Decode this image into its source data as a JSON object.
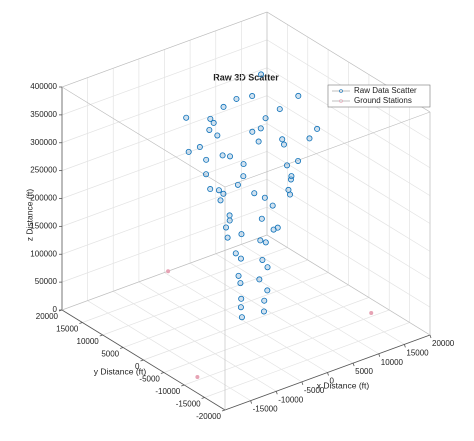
{
  "chart_data": {
    "type": "scatter3d",
    "title": "Raw 3D Scatter",
    "xlabel": "x Distance (ft)",
    "ylabel": "y Distance (ft)",
    "zlabel": "z Distance (ft)",
    "xlim": [
      -20000,
      20000
    ],
    "ylim": [
      -20000,
      20000
    ],
    "zlim": [
      0,
      400000
    ],
    "xticks": [
      -15000,
      -10000,
      -5000,
      0,
      5000,
      10000,
      15000,
      20000
    ],
    "yticks": [
      -20000,
      -15000,
      -10000,
      -5000,
      0,
      5000,
      10000,
      15000,
      20000
    ],
    "zticks": [
      0,
      50000,
      100000,
      150000,
      200000,
      250000,
      300000,
      350000,
      400000
    ],
    "grid": true,
    "legend": "upper right",
    "series": [
      {
        "name": "Raw Data Scatter",
        "color": "#0a6fb8",
        "x": [
          0,
          3500,
          200,
          3800,
          -300,
          4000,
          500,
          3000,
          -500,
          4200,
          1000,
          2800,
          -800,
          4500,
          1500,
          2000,
          -2000,
          5000,
          0,
          3000,
          -3500,
          6000,
          1500,
          -1000,
          4000,
          -4000,
          7000,
          2000,
          -2500,
          5500,
          500,
          -5000,
          3500,
          8000,
          -6000,
          1000,
          4000,
          -3000,
          9000,
          -7000,
          2500,
          6000,
          -4500,
          0,
          10000,
          -8000,
          3000,
          7000,
          -5500,
          -1000,
          9500,
          -9000,
          4500,
          1500,
          -6500,
          11000,
          -3500,
          5000,
          -2000,
          8500,
          -7500,
          2000,
          500,
          -4000
        ],
        "y": [
          1000,
          0,
          1500,
          300,
          800,
          -200,
          2000,
          500,
          1200,
          0,
          2500,
          -500,
          1500,
          800,
          3000,
          -1000,
          2000,
          -1500,
          4000,
          -3000,
          500,
          1000,
          -2000,
          5000,
          3000,
          -1000,
          -2000,
          4500,
          3500,
          -3500,
          -4000,
          2500,
          5000,
          0,
          -2000,
          7000,
          -6000,
          6000,
          2000,
          1000,
          -8000,
          6000,
          -5000,
          9000,
          -3000,
          4000,
          -9000,
          4000,
          -3000,
          7500,
          -5500,
          0,
          8000,
          -7000,
          6500,
          1000,
          -7500,
          -2000,
          3000,
          7000,
          -1500,
          1000,
          -3000,
          2000
        ],
        "z": [
          5000,
          8000,
          20000,
          25000,
          40000,
          45000,
          60000,
          65000,
          80000,
          85000,
          100000,
          105000,
          120000,
          125000,
          140000,
          145000,
          150000,
          160000,
          165000,
          170000,
          180000,
          185000,
          190000,
          200000,
          205000,
          210000,
          215000,
          220000,
          230000,
          235000,
          240000,
          245000,
          250000,
          255000,
          260000,
          265000,
          270000,
          275000,
          280000,
          285000,
          290000,
          295000,
          300000,
          305000,
          310000,
          315000,
          320000,
          325000,
          330000,
          335000,
          340000,
          345000,
          350000,
          355000,
          360000,
          365000,
          370000,
          375000,
          380000,
          385000,
          390000,
          395000,
          360000,
          340000
        ]
      },
      {
        "name": "Ground Stations",
        "color": "#e6a3b4",
        "x": [
          700,
          -16800,
          17200
        ],
        "y": [
          20000,
          -9200,
          -9100
        ],
        "z": [
          0,
          0,
          0
        ]
      }
    ]
  }
}
